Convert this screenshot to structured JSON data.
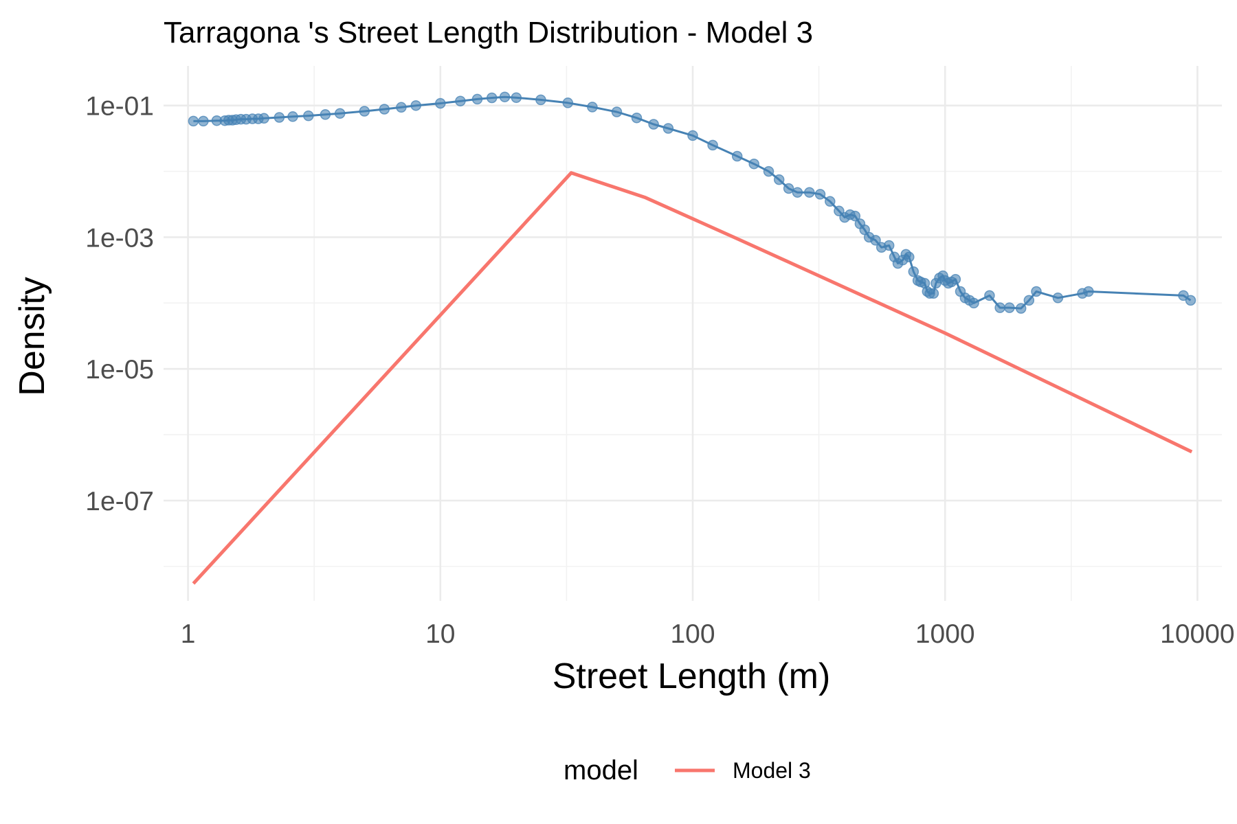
{
  "chart_data": {
    "type": "line",
    "title": "Tarragona 's Street Length Distribution - Model 3",
    "xlabel": "Street Length (m)",
    "ylabel": "Density",
    "x_scale": "log10",
    "y_scale": "log10",
    "xlim": [
      0.8,
      12500
    ],
    "ylim": [
      3e-09,
      0.4
    ],
    "x_ticks": [
      {
        "value": 1,
        "label": "1"
      },
      {
        "value": 10,
        "label": "10"
      },
      {
        "value": 100,
        "label": "100"
      },
      {
        "value": 1000,
        "label": "1000"
      },
      {
        "value": 10000,
        "label": "10000"
      }
    ],
    "y_ticks": [
      {
        "value": 0.1,
        "label": "1e-01"
      },
      {
        "value": 0.001,
        "label": "1e-03"
      },
      {
        "value": 1e-05,
        "label": "1e-05"
      },
      {
        "value": 1e-07,
        "label": "1e-07"
      }
    ],
    "grid": true,
    "legend": {
      "title": "model",
      "position": "bottom",
      "entries": [
        {
          "label": "Model 3",
          "color": "#F8766D"
        }
      ]
    },
    "series": [
      {
        "kind": "empirical",
        "style": "points+line",
        "color": "#4682B4",
        "x": [
          1.05,
          1.15,
          1.3,
          1.4,
          1.45,
          1.5,
          1.55,
          1.62,
          1.7,
          1.8,
          1.9,
          2.0,
          2.3,
          2.6,
          3.0,
          3.5,
          4.0,
          5.0,
          6.0,
          7.0,
          8.0,
          10.0,
          12.0,
          14.0,
          16.0,
          18.0,
          20.0,
          25.0,
          32.0,
          40.0,
          50.0,
          60.0,
          70.0,
          80.0,
          100.0,
          120.0,
          150.0,
          175.0,
          200.0,
          220.0,
          240.0,
          260.0,
          290.0,
          320.0,
          350.0,
          380.0,
          400.0,
          420.0,
          440.0,
          460.0,
          480.0,
          500.0,
          530.0,
          560.0,
          600.0,
          630.0,
          650.0,
          680.0,
          700.0,
          720.0,
          750.0,
          780.0,
          800.0,
          830.0,
          850.0,
          870.0,
          900.0,
          920.0,
          950.0,
          980.0,
          1000.0,
          1030.0,
          1060.0,
          1100.0,
          1150.0,
          1200.0,
          1250.0,
          1300.0,
          1500.0,
          1650.0,
          1800.0,
          2000.0,
          2150.0,
          2300.0,
          2800.0,
          3500.0,
          3700.0,
          8800.0,
          9400.0
        ],
        "y": [
          0.058,
          0.058,
          0.059,
          0.059,
          0.06,
          0.06,
          0.061,
          0.062,
          0.062,
          0.063,
          0.063,
          0.064,
          0.066,
          0.068,
          0.07,
          0.073,
          0.076,
          0.082,
          0.088,
          0.094,
          0.1,
          0.108,
          0.117,
          0.125,
          0.131,
          0.135,
          0.132,
          0.122,
          0.11,
          0.095,
          0.08,
          0.065,
          0.052,
          0.045,
          0.035,
          0.025,
          0.017,
          0.013,
          0.01,
          0.0075,
          0.0055,
          0.0048,
          0.0048,
          0.0045,
          0.0035,
          0.0025,
          0.002,
          0.0022,
          0.0021,
          0.0016,
          0.0013,
          0.001,
          0.0009,
          0.0007,
          0.00075,
          0.0005,
          0.0004,
          0.00045,
          0.00055,
          0.0005,
          0.0003,
          0.00022,
          0.00021,
          0.0002,
          0.00015,
          0.00014,
          0.00014,
          0.0002,
          0.00024,
          0.00026,
          0.00022,
          0.0002,
          0.00021,
          0.00023,
          0.00015,
          0.00012,
          0.00011,
          0.0001,
          0.00013,
          8.5e-05,
          8.5e-05,
          8.3e-05,
          0.00011,
          0.00015,
          0.00012,
          0.00014,
          0.00015,
          0.00013,
          0.00011
        ]
      },
      {
        "name": "Model 3",
        "kind": "model",
        "style": "line",
        "color": "#F8766D",
        "x": [
          1.05,
          33.0,
          65.0,
          150.0,
          1000.0,
          9500.0
        ],
        "y": [
          5.5e-09,
          0.0095,
          0.004,
          0.00095,
          3.5e-05,
          5.5e-07
        ]
      }
    ]
  }
}
